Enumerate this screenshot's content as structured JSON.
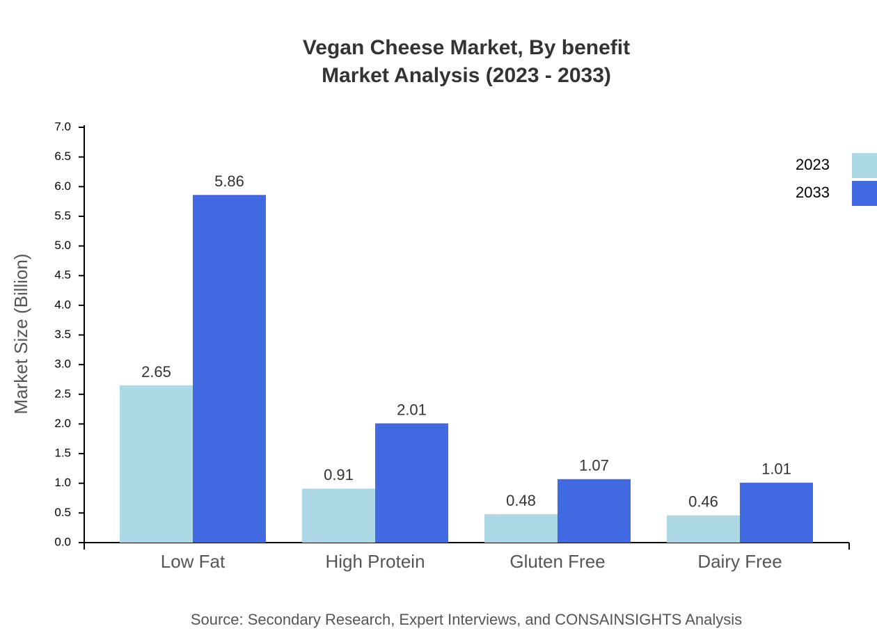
{
  "chart_data": {
    "type": "bar",
    "title": "Vegan Cheese Market, By benefit",
    "subtitle": "Market Analysis (2023 - 2033)",
    "y_label": "Market Size (Billion)",
    "source": "Source: Secondary Research, Expert Interviews, and CONSAINSIGHTS Analysis",
    "categories": [
      "Low Fat",
      "High Protein",
      "Gluten Free",
      "Dairy Free"
    ],
    "series": [
      {
        "name": "2023",
        "color": "#add8e6",
        "values": [
          2.65,
          0.91,
          0.48,
          0.46
        ]
      },
      {
        "name": "2033",
        "color": "#4169e1",
        "values": [
          5.86,
          2.01,
          1.07,
          1.01
        ]
      }
    ],
    "ylim": [
      0,
      7
    ],
    "yticks": [
      {
        "value": 0,
        "label": "0.0"
      },
      0.5,
      {
        "value": 1,
        "label": "1.0"
      },
      1.5,
      {
        "value": 2,
        "label": "2.0"
      },
      2.5,
      {
        "value": 3,
        "label": "3.0"
      },
      3.5,
      {
        "value": 4,
        "label": "4.0"
      },
      4.5,
      {
        "value": 5,
        "label": "5.0"
      },
      5.5,
      {
        "value": 6,
        "label": "6.0"
      },
      6.5,
      {
        "value": 7,
        "label": "7.0"
      }
    ],
    "legend": "top-right"
  }
}
